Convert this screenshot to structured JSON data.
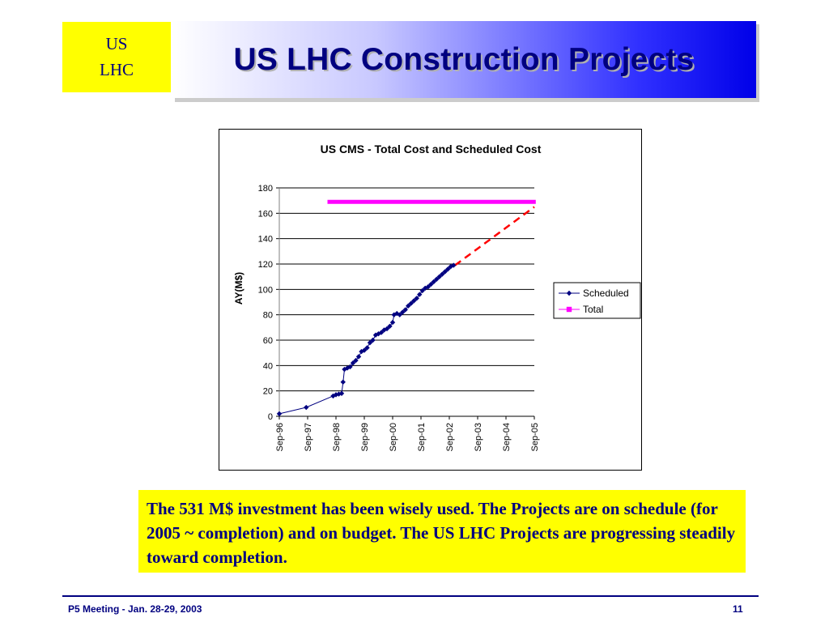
{
  "logo": {
    "line1": "US",
    "line2": "LHC"
  },
  "slide_title": "US LHC Construction Projects",
  "chart_data": {
    "type": "line",
    "title": "US CMS - Total Cost and Scheduled Cost",
    "xlabel": "",
    "ylabel": "AY(M$)",
    "ylim": [
      0,
      180
    ],
    "yticks": [
      0,
      20,
      40,
      60,
      80,
      100,
      120,
      140,
      160,
      180
    ],
    "categories": [
      "Sep-96",
      "Sep-97",
      "Sep-98",
      "Sep-99",
      "Sep-00",
      "Sep-01",
      "Sep-02",
      "Sep-03",
      "Sep-04",
      "Sep-05"
    ],
    "grid": true,
    "legend": "right",
    "series": [
      {
        "name": "Scheduled",
        "color": "#000080",
        "marker": "diamond",
        "points": [
          [
            0.0,
            2
          ],
          [
            0.95,
            7
          ],
          [
            1.9,
            16
          ],
          [
            2.0,
            17
          ],
          [
            2.1,
            17.5
          ],
          [
            2.2,
            18
          ],
          [
            2.25,
            27
          ],
          [
            2.3,
            37
          ],
          [
            2.4,
            38
          ],
          [
            2.5,
            39
          ],
          [
            2.6,
            42
          ],
          [
            2.7,
            44
          ],
          [
            2.8,
            47
          ],
          [
            2.9,
            51
          ],
          [
            3.0,
            52
          ],
          [
            3.1,
            54
          ],
          [
            3.2,
            58
          ],
          [
            3.3,
            60
          ],
          [
            3.4,
            64
          ],
          [
            3.5,
            65
          ],
          [
            3.6,
            66
          ],
          [
            3.7,
            68
          ],
          [
            3.8,
            69
          ],
          [
            3.9,
            71
          ],
          [
            4.0,
            74
          ],
          [
            4.05,
            80
          ],
          [
            4.15,
            81
          ],
          [
            4.25,
            80
          ],
          [
            4.35,
            82
          ],
          [
            4.45,
            84
          ],
          [
            4.55,
            87
          ],
          [
            4.65,
            89
          ],
          [
            4.75,
            91
          ],
          [
            4.85,
            93
          ],
          [
            4.95,
            96
          ],
          [
            5.05,
            99
          ],
          [
            5.15,
            101
          ],
          [
            5.25,
            102
          ],
          [
            5.35,
            104
          ],
          [
            5.45,
            106
          ],
          [
            5.55,
            108
          ],
          [
            5.65,
            110
          ],
          [
            5.75,
            112
          ],
          [
            5.85,
            114
          ],
          [
            5.95,
            116
          ],
          [
            6.05,
            118
          ],
          [
            6.15,
            119
          ]
        ]
      },
      {
        "name": "Total",
        "color": "#ff00ff",
        "marker": "square",
        "points": [
          [
            1.7,
            169
          ],
          [
            9.05,
            169
          ]
        ]
      }
    ],
    "projection": {
      "color": "#ff0000",
      "style": "dashed",
      "points": [
        [
          6.2,
          119
        ],
        [
          9.0,
          165
        ]
      ]
    }
  },
  "callout_text": "The 531 M$ investment has been wisely used. The Projects are on schedule (for 2005 ~ completion) and on budget. The US LHC Projects are progressing steadily toward completion.",
  "footer": {
    "left": "P5 Meeting -  Jan. 28-29, 2003",
    "page": "11"
  }
}
